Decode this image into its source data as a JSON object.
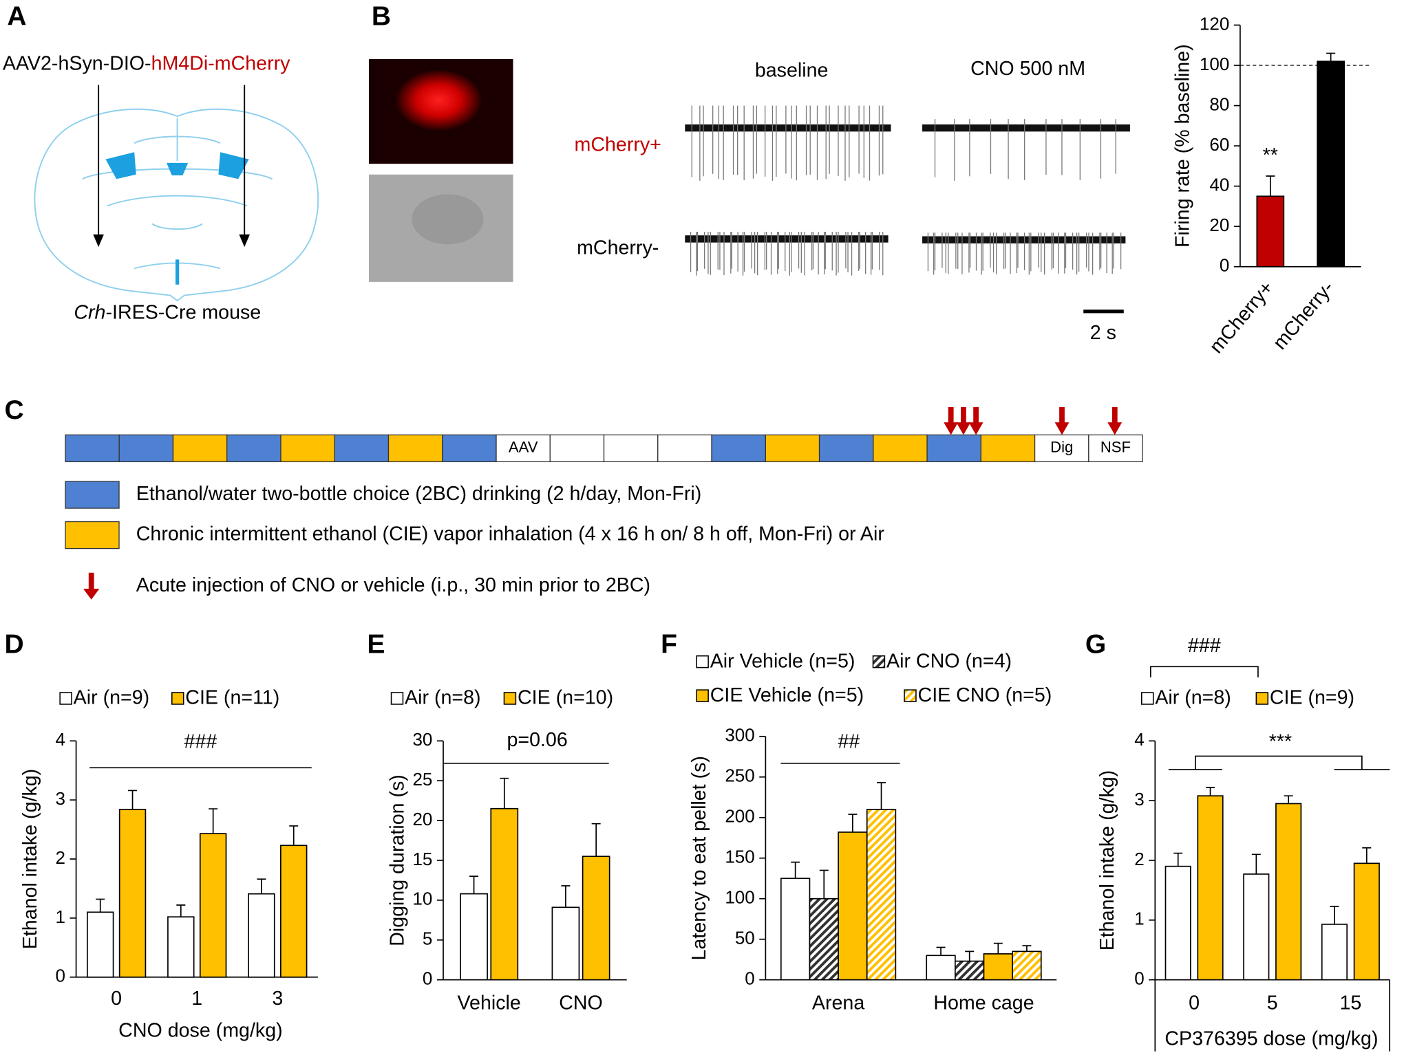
{
  "panel_labels": [
    "A",
    "B",
    "C",
    "D",
    "E",
    "F",
    "G"
  ],
  "panel_a": {
    "vector_prefix": "AAV2-hSyn-DIO-",
    "vector_construct": "hM4Di-mCherry",
    "mouse_gene": "Crh",
    "mouse_line": "-IRES-Cre mouse"
  },
  "panel_b": {
    "conditions": [
      "baseline",
      "CNO 500 nM"
    ],
    "cells": [
      "mCherry+",
      "mCherry-"
    ],
    "scale_bar": "2 s"
  },
  "panel_c": {
    "box_labels": [
      "AAV",
      "Dig",
      "NSF"
    ],
    "legend": [
      "Ethanol/water two-bottle choice (2BC) drinking (2 h/day, Mon-Fri)",
      "Chronic intermittent ethanol (CIE) vapor inhalation (4 x 16 h on/ 8 h off, Mon-Fri) or Air",
      "Acute injection of CNO or vehicle (i.p., 30 min prior to 2BC)"
    ]
  },
  "chart_data": [
    {
      "type": "bar",
      "ylabel": "Firing rate (% baseline)",
      "categories": [
        "mCherry+",
        "mCherry-"
      ],
      "values": [
        35,
        102
      ],
      "errors": [
        10,
        4
      ],
      "colors": [
        "#c00000",
        "#000000"
      ],
      "ylim": [
        0,
        120
      ],
      "yticks": [
        0,
        20,
        40,
        60,
        80,
        100,
        120
      ],
      "reference_line": 100,
      "annotations": [
        "**"
      ]
    },
    {
      "type": "bar",
      "ylabel": "Ethanol intake (g/kg)",
      "xlabel": "CNO dose (mg/kg)",
      "categories": [
        "0",
        "1",
        "3"
      ],
      "series": [
        {
          "name": "Air (n=9)",
          "color": "#ffffff",
          "values": [
            1.1,
            1.02,
            1.41
          ],
          "errors": [
            0.22,
            0.2,
            0.25
          ]
        },
        {
          "name": "CIE (n=11)",
          "color": "#ffc000",
          "values": [
            2.84,
            2.43,
            2.23
          ],
          "errors": [
            0.32,
            0.42,
            0.33
          ]
        }
      ],
      "ylim": [
        0,
        4
      ],
      "yticks": [
        0,
        1,
        2,
        3,
        4
      ],
      "annotations": [
        "###"
      ]
    },
    {
      "type": "bar",
      "ylabel": "Digging duration (s)",
      "categories": [
        "Vehicle",
        "CNO"
      ],
      "series": [
        {
          "name": "Air (n=8)",
          "color": "#ffffff",
          "values": [
            10.8,
            9.1
          ],
          "errors": [
            2.2,
            2.7
          ]
        },
        {
          "name": "CIE (n=10)",
          "color": "#ffc000",
          "values": [
            21.5,
            15.5
          ],
          "errors": [
            3.8,
            4.1
          ]
        }
      ],
      "ylim": [
        0,
        30
      ],
      "yticks": [
        0,
        5,
        10,
        15,
        20,
        25,
        30
      ],
      "annotations": [
        "p=0.06"
      ]
    },
    {
      "type": "bar",
      "ylabel": "Latency to eat pellet (s)",
      "categories": [
        "Arena",
        "Home cage"
      ],
      "series": [
        {
          "name": "Air Vehicle (n=5)",
          "color": "#ffffff",
          "values": [
            125,
            30
          ],
          "errors": [
            20,
            10
          ]
        },
        {
          "name": "Air CNO (n=4)",
          "color": "#333333",
          "hatch": true,
          "values": [
            100,
            23
          ],
          "errors": [
            35,
            12
          ]
        },
        {
          "name": "CIE Vehicle (n=5)",
          "color": "#ffc000",
          "values": [
            182,
            32
          ],
          "errors": [
            22,
            13
          ]
        },
        {
          "name": "CIE CNO (n=5)",
          "color": "#ffc000",
          "hatch": true,
          "values": [
            210,
            35
          ],
          "errors": [
            33,
            7
          ]
        }
      ],
      "ylim": [
        0,
        300
      ],
      "yticks": [
        0,
        50,
        100,
        150,
        200,
        250,
        300
      ],
      "annotations": [
        "##"
      ]
    },
    {
      "type": "bar",
      "ylabel": "Ethanol intake (g/kg)",
      "xlabel": "CP376395 dose (mg/kg)",
      "categories": [
        "0",
        "5",
        "15"
      ],
      "series": [
        {
          "name": "Air (n=8)",
          "color": "#ffffff",
          "values": [
            1.9,
            1.77,
            0.93
          ],
          "errors": [
            0.22,
            0.33,
            0.3
          ]
        },
        {
          "name": "CIE (n=9)",
          "color": "#ffc000",
          "values": [
            3.08,
            2.95,
            1.95
          ],
          "errors": [
            0.14,
            0.13,
            0.26
          ]
        }
      ],
      "ylim": [
        0,
        4
      ],
      "yticks": [
        0,
        1,
        2,
        3,
        4
      ],
      "annotations": [
        "###",
        "***"
      ]
    }
  ]
}
